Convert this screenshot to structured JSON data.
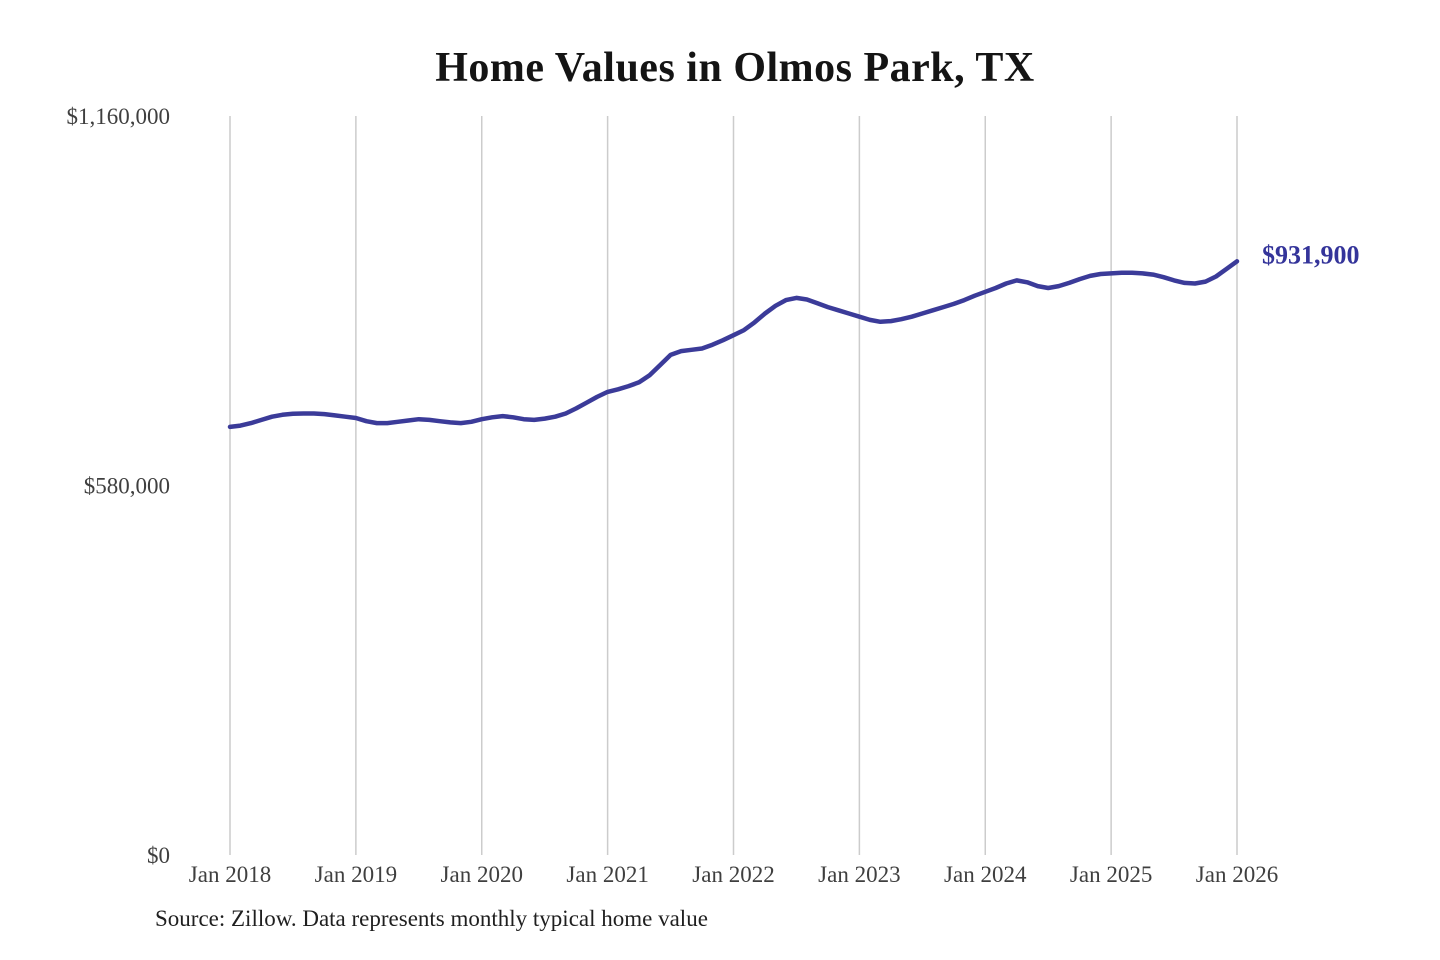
{
  "title": "Home Values in Olmos Park, TX",
  "source_note": "Source: Zillow. Data represents monthly typical home value",
  "colors": {
    "line": "#3b3b99",
    "end_label": "#34349a",
    "grid": "#cccccc",
    "axis_text": "#3f3f3f",
    "title_text": "#141414",
    "source_text": "#1f1f1f"
  },
  "chart_data": {
    "type": "line",
    "title": "Home Values in Olmos Park, TX",
    "xlabel": "",
    "ylabel": "",
    "frequency": "monthly",
    "x_start_label": "Jan 2018",
    "x_end_label": "Jan 2026",
    "grid": "vertical-only",
    "legend": "none",
    "ylim": [
      0,
      1160000
    ],
    "y_ticks": [
      {
        "value": 0,
        "label": "$0"
      },
      {
        "value": 580000,
        "label": "$580,000"
      },
      {
        "value": 1160000,
        "label": "$1,160,000"
      }
    ],
    "x_tick_labels": [
      "Jan 2018",
      "Jan 2019",
      "Jan 2020",
      "Jan 2021",
      "Jan 2022",
      "Jan 2023",
      "Jan 2024",
      "Jan 2025",
      "Jan 2026"
    ],
    "x_tick_month_indices": [
      0,
      12,
      24,
      36,
      48,
      60,
      72,
      84,
      96
    ],
    "end_value": 931900,
    "end_label": "$931,900",
    "series": [
      {
        "name": "Monthly typical home value",
        "values": [
          672000,
          674000,
          678000,
          683000,
          688000,
          691000,
          692500,
          693000,
          693000,
          692000,
          690000,
          688000,
          686000,
          681000,
          678000,
          678000,
          680000,
          682000,
          684000,
          683000,
          681000,
          679000,
          678000,
          680000,
          684000,
          687000,
          689000,
          687000,
          684000,
          683000,
          685000,
          688000,
          693000,
          701000,
          710000,
          719000,
          727000,
          731000,
          736000,
          742000,
          753000,
          769000,
          785000,
          791000,
          793000,
          795000,
          801000,
          808000,
          816000,
          824000,
          836000,
          850000,
          862000,
          871000,
          874500,
          872000,
          866000,
          860000,
          855000,
          850000,
          845000,
          840000,
          837000,
          838000,
          841000,
          845000,
          850000,
          855000,
          860000,
          865000,
          871000,
          878000,
          884000,
          890000,
          897000,
          902000,
          899000,
          893000,
          890000,
          893000,
          898000,
          904000,
          909000,
          912000,
          913000,
          914000,
          914000,
          913000,
          911000,
          907000,
          902000,
          898000,
          897000,
          900000,
          908000,
          920000,
          931900
        ]
      }
    ]
  }
}
